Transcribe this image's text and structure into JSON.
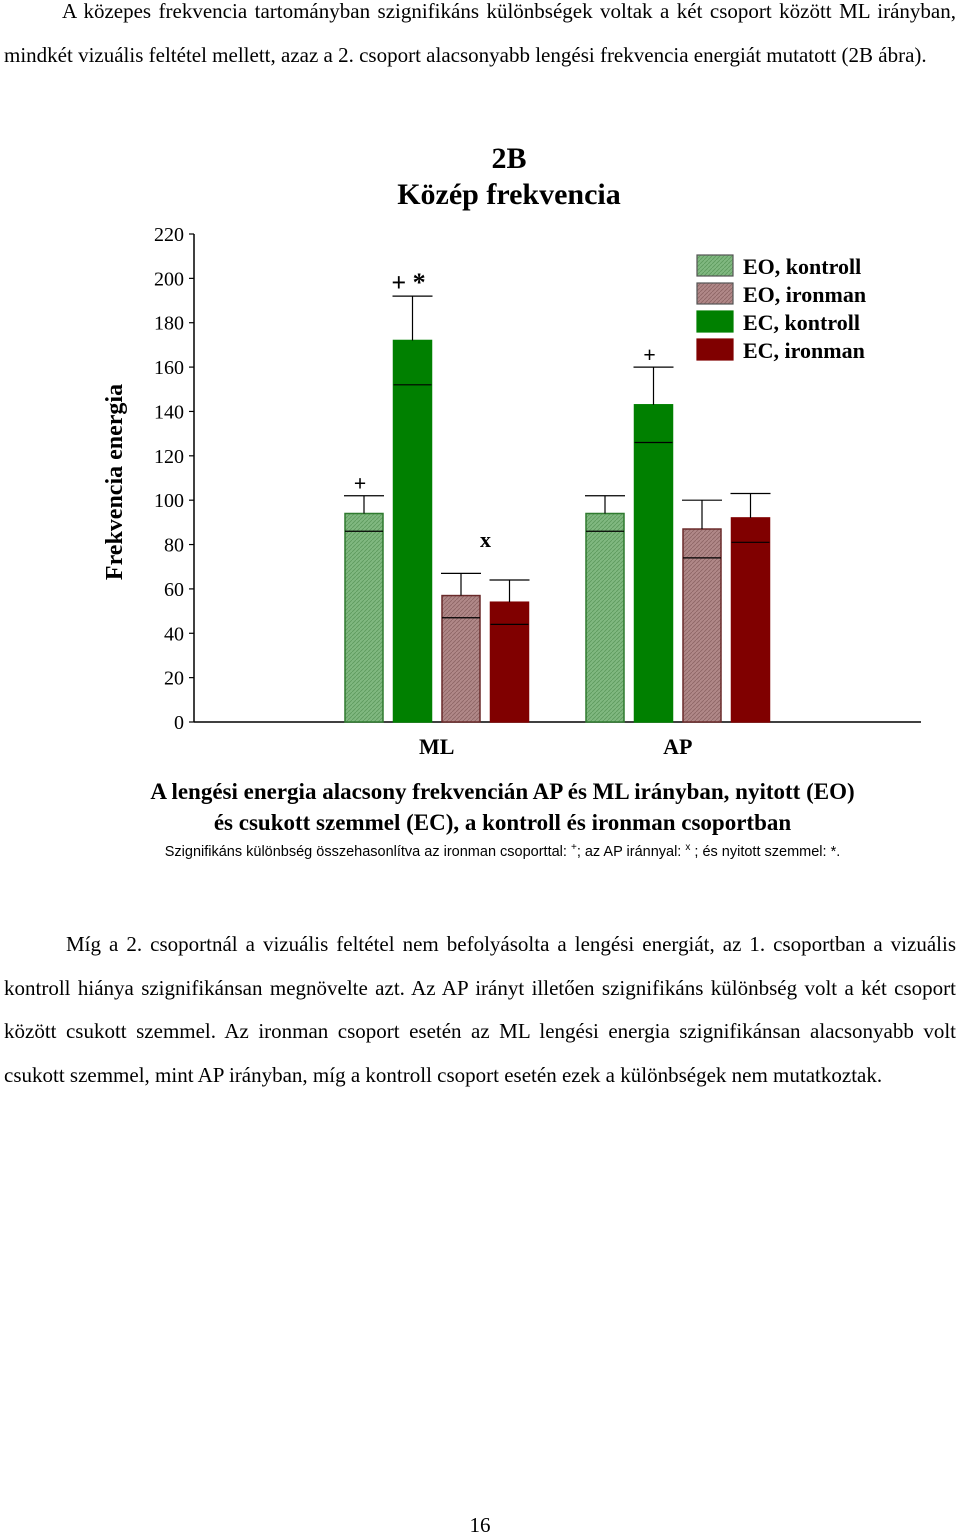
{
  "paragraphs": {
    "intro": "A közepes frekvencia tartományban szignifikáns különbségek voltak a két csoport között ML irányban, mindkét vizuális feltétel mellett, azaz a 2. csoport alacsonyabb lengési frekvencia energiát mutatott (2B ábra).",
    "after": "Míg a 2. csoportnál a vizuális feltétel nem befolyásolta a lengési energiát, az 1. csoportban a vizuális kontroll hiánya szignifikánsan megnövelte azt. Az AP irányt illetően szignifikáns különbség volt a két csoport között csukott szemmel. Az ironman csoport esetén az ML lengési energia szignifikánsan alacsonyabb volt csukott szemmel, mint AP irányban, míg a kontroll csoport esetén ezek a különbségek nem mutatkoztak."
  },
  "chart_data": {
    "type": "bar",
    "title": "2B",
    "subtitle": "Közép frekvencia",
    "ylabel": "Frekvencia energia",
    "xlabel": "",
    "ylim": [
      0,
      220
    ],
    "yticks": [
      "0",
      "20",
      "40",
      "60",
      "80",
      "100",
      "120",
      "140",
      "160",
      "180",
      "200",
      "220"
    ],
    "categories": [
      "ML",
      "AP"
    ],
    "series": [
      {
        "name": "EO, kontroll",
        "values": [
          94,
          94
        ],
        "errors": [
          8,
          8
        ],
        "color": "#80b880",
        "hatched": true,
        "markers": [
          "+",
          ""
        ]
      },
      {
        "name": "EC, kontroll",
        "values": [
          172,
          143
        ],
        "errors": [
          20,
          17
        ],
        "color": "#008000",
        "hatched": false,
        "markers": [
          "+ *",
          "+"
        ]
      },
      {
        "name": "EO, ironman",
        "values": [
          57,
          87
        ],
        "errors": [
          10,
          13
        ],
        "color": "#b08888",
        "hatched": true,
        "markers": [
          "",
          ""
        ]
      },
      {
        "name": "EC, ironman",
        "values": [
          54,
          92
        ],
        "errors": [
          10,
          11
        ],
        "color": "#800000",
        "hatched": false,
        "markers": [
          "x",
          ""
        ]
      }
    ],
    "legend_order": [
      "EO, kontroll",
      "EO, ironman",
      "EC, kontroll",
      "EC, ironman"
    ],
    "legend_position": "top-right"
  },
  "caption": {
    "line1": "A lengési energia alacsony frekvencián AP és ML irányban, nyitott (EO)",
    "line2": "és csukott szemmel (EC), a kontroll és ironman csoportban",
    "note_a": "Szignifikáns különbség összehasonlítva az ironman csoporttal: ",
    "note_sup1": "+",
    "note_b": "; az AP iránnyal: ",
    "note_sup2": "x",
    "note_c": " ; és nyitott szemmel: *."
  },
  "page_number": "16"
}
